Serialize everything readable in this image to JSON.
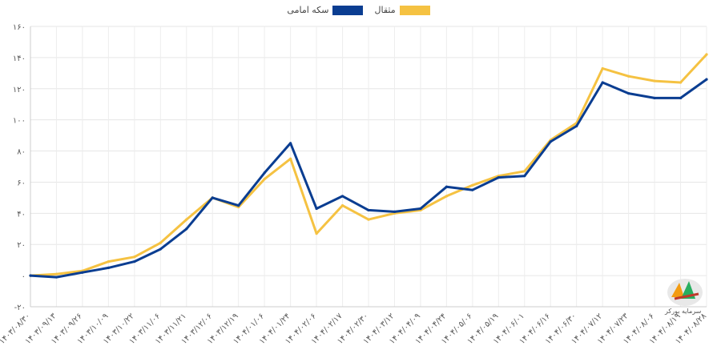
{
  "chart_data": {
    "type": "line",
    "title": "",
    "xlabel": "",
    "ylabel": "",
    "ylim": [
      -20,
      160
    ],
    "yticks": [
      "-۲۰",
      "۰",
      "۲۰",
      "۴۰",
      "۶۰",
      "۸۰",
      "۱۰۰",
      "۱۲۰",
      "۱۴۰",
      "۱۶۰"
    ],
    "ytick_values": [
      -20,
      0,
      20,
      40,
      60,
      80,
      100,
      120,
      140,
      160
    ],
    "categories": [
      "۱۴۰۳/۰۸/۳۰",
      "۱۴۰۳/۰۹/۱۳",
      "۱۴۰۳/۰۹/۲۶",
      "۱۴۰۳/۱۰/۰۹",
      "۱۴۰۳/۱۰/۲۲",
      "۱۴۰۳/۱۱/۰۶",
      "۱۴۰۳/۱۱/۲۱",
      "۱۴۰۳/۱۲/۰۶",
      "۱۴۰۳/۱۲/۱۹",
      "۱۴۰۴/۰۱/۰۶",
      "۱۴۰۴/۰۱/۲۴",
      "۱۴۰۴/۰۲/۰۶",
      "۱۴۰۴/۰۲/۱۷",
      "۱۴۰۴/۰۲/۳۰",
      "۱۴۰۴/۰۳/۱۲",
      "۱۴۰۴/۰۴/۰۹",
      "۱۴۰۴/۰۴/۲۴",
      "۱۴۰۴/۰۵/۰۶",
      "۱۴۰۴/۰۵/۱۹",
      "۱۴۰۴/۰۶/۰۱",
      "۱۴۰۴/۰۶/۱۶",
      "۱۴۰۴/۰۶/۳۰",
      "۱۴۰۴/۰۷/۱۲",
      "۱۴۰۴/۰۷/۲۳",
      "۱۴۰۴/۰۸/۰۶",
      "۱۴۰۴/۰۸/۱۹",
      "۱۴۰۴/۰۸/۲۸"
    ],
    "series": [
      {
        "name": "مثقال",
        "color": "#f5c242",
        "values": [
          0,
          1,
          3,
          9,
          12,
          21,
          36,
          50,
          44,
          62,
          75,
          27,
          45,
          36,
          40,
          42,
          51,
          58,
          64,
          67,
          87,
          98,
          133,
          128,
          125,
          124,
          142
        ]
      },
      {
        "name": "سکه امامی",
        "color": "#0a3d91",
        "values": [
          0,
          -1,
          2,
          5,
          9,
          17,
          30,
          50,
          45,
          66,
          85,
          43,
          51,
          42,
          41,
          43,
          57,
          55,
          63,
          64,
          86,
          96,
          124,
          117,
          114,
          114,
          126
        ]
      }
    ],
    "legend": {
      "position": "top",
      "items": [
        "مثقال",
        "سکه امامی"
      ]
    },
    "grid": true
  },
  "watermark": {
    "text": "سرمایه بورکر"
  }
}
